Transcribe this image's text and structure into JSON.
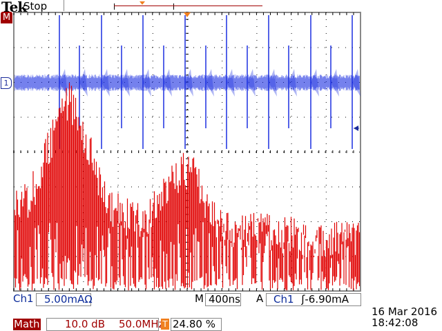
{
  "header": {
    "brand": "Tek",
    "status": "Stop"
  },
  "markers": {
    "math": "M",
    "ch1": "1"
  },
  "colors": {
    "ch1": "#1a2ee0",
    "math": "#e00000",
    "trigger": "#f08020",
    "label_blue": "#0a2a9a",
    "label_red": "#a00000"
  },
  "ch1": {
    "label": "Ch1",
    "scale": "5.00mAΩ"
  },
  "timebase": {
    "prefix": "M",
    "value": "400ns"
  },
  "trigger": {
    "prefix": "A",
    "source": "Ch1",
    "slope_icon": "rising-edge-icon",
    "level": "-6.90mA"
  },
  "math": {
    "label": "Math",
    "scale": "10.0 dB",
    "span": "50.0MHz",
    "t_icon": "T",
    "position": "24.80 %"
  },
  "datetime": {
    "date": "16 Mar  2016",
    "time": "18:42:08"
  }
}
